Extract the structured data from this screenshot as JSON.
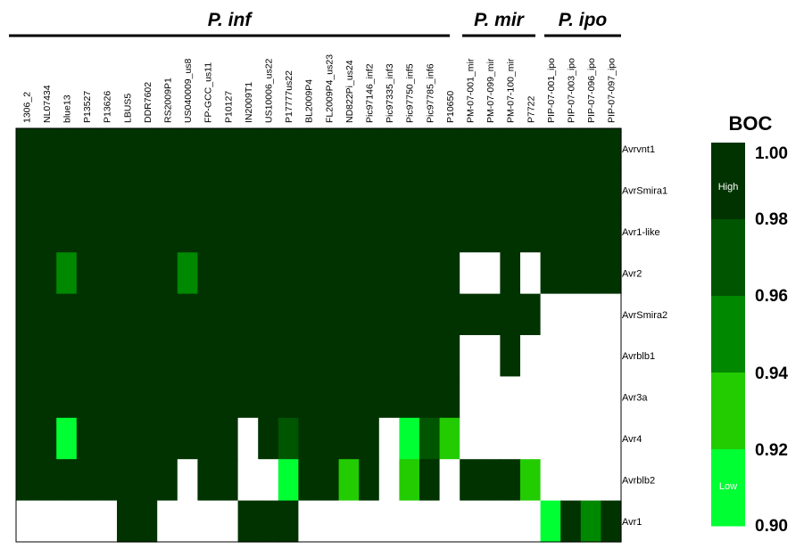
{
  "chart_data": {
    "type": "heatmap",
    "groups": [
      {
        "label": "P. inf",
        "first_col": 0,
        "last_col": 22
      },
      {
        "label": "P. mir",
        "first_col": 23,
        "last_col": 26
      },
      {
        "label": "P. ipo",
        "first_col": 27,
        "last_col": 30
      }
    ],
    "columns": [
      "1306_2",
      "NL07434",
      "blue13",
      "P13527",
      "P13626",
      "LBUS5",
      "DDR7602",
      "RS2009P1",
      "US040009_us8",
      "FP-GCC_us11",
      "P10127",
      "IN2009T1",
      "US10006_us22",
      "P17777us22",
      "BL2009P4",
      "FL2009P4_us23",
      "ND822Pi_us24",
      "Pic97146_inf2",
      "Pic97335_inf3",
      "Pic97750_inf5",
      "Pic97785_inf6",
      "P10650",
      "PM-07-001_mir",
      "PM-07-099_mir",
      "PM-07-100_mir",
      "P7722",
      "PIP-07-001_ipo",
      "PIP-07-003_ipo",
      "PIP-07-096_ipo",
      "PIP-07-097_ipo"
    ],
    "rows": [
      "Avrvnt1",
      "AvrSmira1",
      "Avr1-like",
      "Avr2",
      "AvrSmira2",
      "Avrblb1",
      "Avr3a",
      "Avr4",
      "Avrblb2",
      "Avr1"
    ],
    "values": [
      [
        1,
        1,
        1,
        1,
        1,
        1,
        1,
        1,
        1,
        1,
        1,
        1,
        1,
        1,
        1,
        1,
        1,
        1,
        1,
        1,
        1,
        1,
        1,
        1,
        1,
        1,
        1,
        1,
        1,
        1
      ],
      [
        1,
        1,
        1,
        1,
        1,
        1,
        1,
        1,
        1,
        1,
        1,
        1,
        1,
        1,
        1,
        1,
        1,
        1,
        1,
        1,
        1,
        1,
        1,
        1,
        1,
        1,
        1,
        1,
        1,
        1
      ],
      [
        1,
        1,
        1,
        1,
        1,
        1,
        1,
        1,
        1,
        1,
        1,
        1,
        1,
        1,
        1,
        1,
        1,
        1,
        1,
        1,
        1,
        1,
        1,
        1,
        1,
        1,
        1,
        1,
        1,
        1
      ],
      [
        1,
        1,
        0.95,
        1,
        1,
        1,
        1,
        1,
        0.95,
        1,
        1,
        1,
        1,
        1,
        1,
        1,
        1,
        1,
        1,
        1,
        1,
        1,
        null,
        null,
        1,
        null,
        1,
        1,
        1,
        1
      ],
      [
        1,
        1,
        1,
        1,
        1,
        1,
        1,
        1,
        1,
        1,
        1,
        1,
        1,
        1,
        1,
        1,
        1,
        1,
        1,
        1,
        1,
        1,
        1,
        1,
        1,
        1,
        null,
        null,
        null,
        null
      ],
      [
        1,
        1,
        1,
        1,
        1,
        1,
        1,
        1,
        1,
        1,
        1,
        1,
        1,
        1,
        1,
        1,
        1,
        1,
        1,
        1,
        1,
        1,
        null,
        null,
        1,
        null,
        null,
        null,
        null,
        null
      ],
      [
        1,
        1,
        1,
        1,
        1,
        1,
        1,
        1,
        1,
        1,
        1,
        1,
        1,
        1,
        1,
        1,
        1,
        1,
        1,
        1,
        1,
        1,
        null,
        null,
        null,
        null,
        null,
        null,
        null,
        null
      ],
      [
        1,
        1,
        0.9,
        1,
        1,
        1,
        1,
        1,
        1,
        1,
        1,
        null,
        1,
        0.96,
        1,
        1,
        1,
        1,
        null,
        0.9,
        0.97,
        0.92,
        null,
        null,
        null,
        null,
        null,
        null,
        null,
        null
      ],
      [
        1,
        1,
        1,
        1,
        1,
        1,
        1,
        1,
        null,
        1,
        1,
        null,
        null,
        0.91,
        1,
        1,
        0.93,
        1,
        null,
        0.93,
        1,
        null,
        1,
        1,
        1,
        0.93,
        null,
        null,
        null,
        null
      ],
      [
        null,
        null,
        null,
        null,
        null,
        1,
        1,
        null,
        null,
        null,
        null,
        1,
        1,
        1,
        null,
        null,
        null,
        null,
        null,
        null,
        null,
        null,
        null,
        null,
        null,
        null,
        0.9,
        1,
        0.95,
        1
      ]
    ],
    "legend": {
      "title": "BOC",
      "ticks": [
        "1.00",
        "0.98",
        "0.96",
        "0.94",
        "0.92",
        "0.90"
      ],
      "high_label": "High",
      "low_label": "Low",
      "colors": [
        "#003300",
        "#005500",
        "#008800",
        "#22cc00",
        "#00ff33"
      ]
    },
    "missing_color": "#ffffff"
  }
}
